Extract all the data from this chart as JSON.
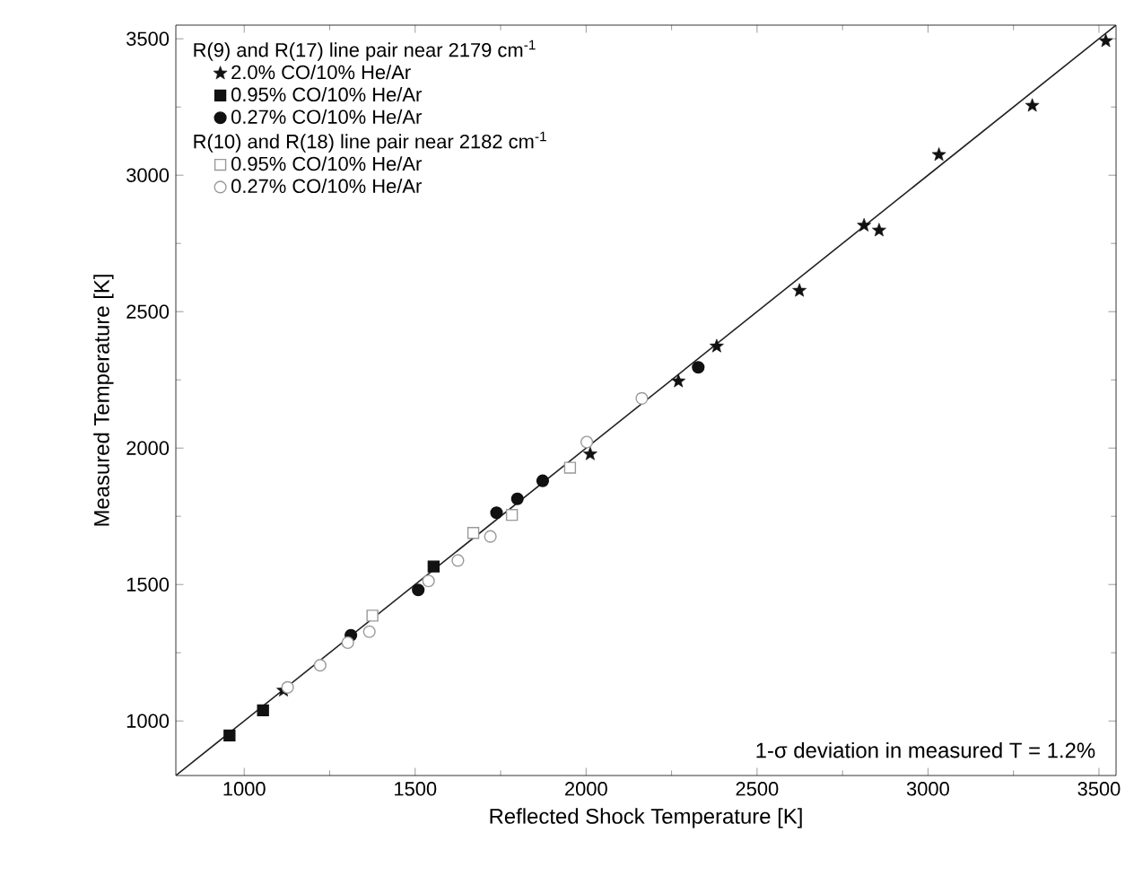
{
  "chart_data": {
    "type": "scatter",
    "xlabel": "Reflected Shock Temperature [K]",
    "ylabel": "Measured Temperature [K]",
    "xlim": [
      800,
      3550
    ],
    "ylim": [
      800,
      3550
    ],
    "xticks": [
      1000,
      1500,
      2000,
      2500,
      3000,
      3500
    ],
    "yticks": [
      1000,
      1500,
      2000,
      2500,
      3000,
      3500
    ],
    "legend": "top left",
    "grid": false,
    "annotations": [
      "R(9) and R(17) line pair near 2179 cm$^{-1}$",
      "R(10) and R(18) line pair near 2182 cm$^{-1}$",
      "1-σ deviation in measured T = 1.2%"
    ],
    "series": [
      {
        "type": "line",
        "color": "#222222",
        "marker": "none",
        "line_style": "solid",
        "x": [
          800,
          3550
        ],
        "values": [
          800,
          3550
        ]
      },
      {
        "name": "2.0% CO/10% He/Ar",
        "color": "#111111",
        "marker": "star",
        "x": [
          1115,
          2012,
          2270,
          2382,
          2624,
          2813,
          2857,
          3032,
          3305,
          3520
        ],
        "values": [
          1112,
          1978,
          2245,
          2373,
          2577,
          2816,
          2798,
          3075,
          3255,
          3492
        ]
      },
      {
        "name": "0.95% CO/10% He/Ar",
        "color": "#111111",
        "marker": "square",
        "x": [
          957,
          1055,
          1554
        ],
        "values": [
          947,
          1039,
          1566
        ]
      },
      {
        "name": "0.27% CO/10% He/Ar",
        "color": "#111111",
        "marker": "circle",
        "x": [
          1312,
          1509,
          1738,
          1799,
          1873,
          2328
        ],
        "values": [
          1314,
          1480,
          1763,
          1814,
          1880,
          2296
        ]
      },
      {
        "name": "0.95% CO/10% He/Ar",
        "color": "#999999",
        "marker": "square",
        "x": [
          1375,
          1670,
          1783,
          1953
        ],
        "values": [
          1386,
          1689,
          1755,
          1928
        ]
      },
      {
        "name": "0.27% CO/10% He/Ar",
        "color": "#999999",
        "marker": "circle",
        "x": [
          1127,
          1222,
          1303,
          1366,
          1539,
          1625,
          1720,
          2002,
          2163
        ],
        "values": [
          1123,
          1204,
          1287,
          1327,
          1513,
          1588,
          1676,
          2022,
          2182
        ]
      }
    ]
  }
}
